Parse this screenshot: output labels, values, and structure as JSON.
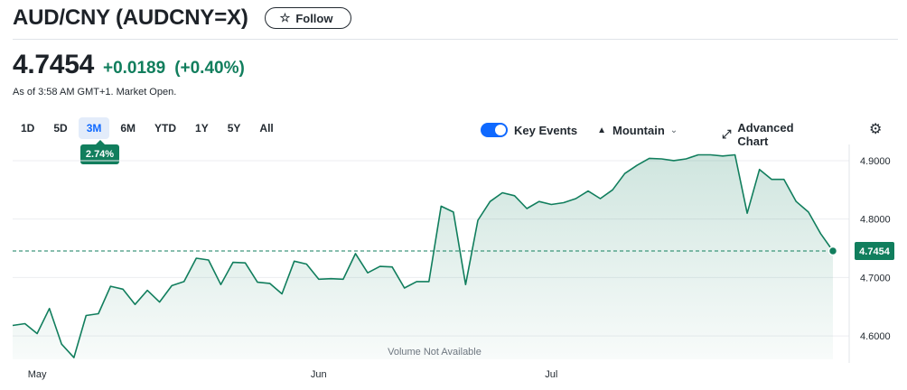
{
  "header": {
    "title": "AUD/CNY (AUDCNY=X)",
    "follow_label": "Follow"
  },
  "quote": {
    "price": "4.7454",
    "change": "+0.0189",
    "change_pct": "(+0.40%)",
    "as_of": "As of 3:58 AM GMT+1. Market Open."
  },
  "ranges": [
    "1D",
    "5D",
    "3M",
    "6M",
    "YTD",
    "1Y",
    "5Y",
    "All"
  ],
  "active_range": "3M",
  "range_change": "2.74%",
  "controls": {
    "key_events_label": "Key Events",
    "chart_type_label": "Mountain",
    "advanced_label": "Advanced Chart",
    "key_events_on": true
  },
  "colors": {
    "up": "#117e5d",
    "accent": "#0f69ff",
    "line": "#117e5d"
  },
  "chart_data": {
    "type": "area",
    "ylim": [
      4.56,
      4.92
    ],
    "yticks": [
      4.6,
      4.7,
      4.8,
      4.9
    ],
    "ytick_labels": [
      "4.6000",
      "4.7000",
      "4.8000",
      "4.9000"
    ],
    "x_month_labels": [
      {
        "label": "May",
        "index": 2
      },
      {
        "label": "Jun",
        "index": 25
      },
      {
        "label": "Jul",
        "index": 44
      }
    ],
    "last_value": 4.7454,
    "last_label": "4.7454",
    "volume_note": "Volume Not Available",
    "values": [
      4.618,
      4.621,
      4.604,
      4.647,
      4.586,
      4.563,
      4.635,
      4.638,
      4.685,
      4.68,
      4.654,
      4.678,
      4.658,
      4.686,
      4.693,
      4.733,
      4.73,
      4.688,
      4.726,
      4.725,
      4.692,
      4.69,
      4.672,
      4.728,
      4.723,
      4.697,
      4.698,
      4.697,
      4.741,
      4.708,
      4.719,
      4.718,
      4.682,
      4.693,
      4.693,
      4.822,
      4.812,
      4.688,
      4.798,
      4.83,
      4.845,
      4.84,
      4.818,
      4.83,
      4.825,
      4.828,
      4.835,
      4.848,
      4.835,
      4.85,
      4.878,
      4.892,
      4.904,
      4.903,
      4.9,
      4.903,
      4.91,
      4.91,
      4.908,
      4.91,
      4.81,
      4.885,
      4.868,
      4.868,
      4.83,
      4.812,
      4.775,
      4.7454
    ]
  }
}
